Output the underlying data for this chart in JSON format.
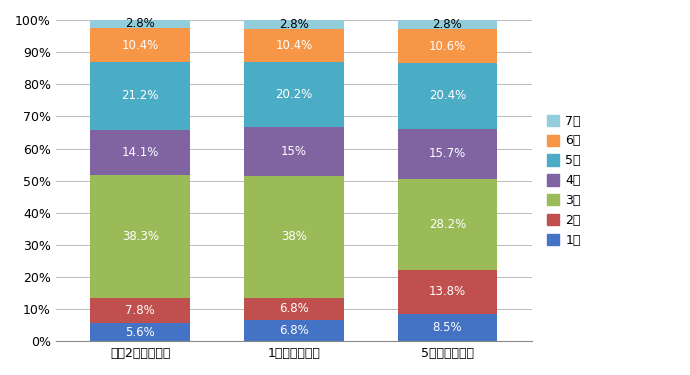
{
  "categories": [
    "令和2年の構成比",
    "1年前の構成比",
    "5年前の構成比"
  ],
  "series": [
    {
      "label": "1級",
      "values": [
        5.6,
        6.8,
        8.5
      ],
      "color": "#4472C4",
      "text_color": "white"
    },
    {
      "label": "2級",
      "values": [
        7.8,
        6.8,
        13.8
      ],
      "color": "#C0504D",
      "text_color": "white"
    },
    {
      "label": "3級",
      "values": [
        38.3,
        38.0,
        28.2
      ],
      "color": "#9BBB59",
      "text_color": "white"
    },
    {
      "label": "4級",
      "values": [
        14.1,
        15.0,
        15.7
      ],
      "color": "#8064A2",
      "text_color": "white"
    },
    {
      "label": "5級",
      "values": [
        21.2,
        20.2,
        20.4
      ],
      "color": "#4BACC6",
      "text_color": "white"
    },
    {
      "label": "6級",
      "values": [
        10.4,
        10.4,
        10.6
      ],
      "color": "#F79646",
      "text_color": "white"
    },
    {
      "label": "7級",
      "values": [
        2.8,
        2.8,
        2.8
      ],
      "color": "#92CDDC",
      "text_color": "black"
    }
  ],
  "ylim": [
    0,
    100
  ],
  "yticks": [
    0,
    10,
    20,
    30,
    40,
    50,
    60,
    70,
    80,
    90,
    100
  ],
  "ytick_labels": [
    "0%",
    "10%",
    "20%",
    "30%",
    "40%",
    "50%",
    "60%",
    "70%",
    "80%",
    "90%",
    "100%"
  ],
  "bar_width": 0.65,
  "figsize": [
    6.9,
    3.75
  ],
  "dpi": 100,
  "background_color": "#FFFFFF",
  "grid_color": "#BBBBBB",
  "font_size_label": 8.5,
  "font_size_tick": 9,
  "legend_font_size": 9,
  "legend_marker_color_7": "#92CDDC"
}
